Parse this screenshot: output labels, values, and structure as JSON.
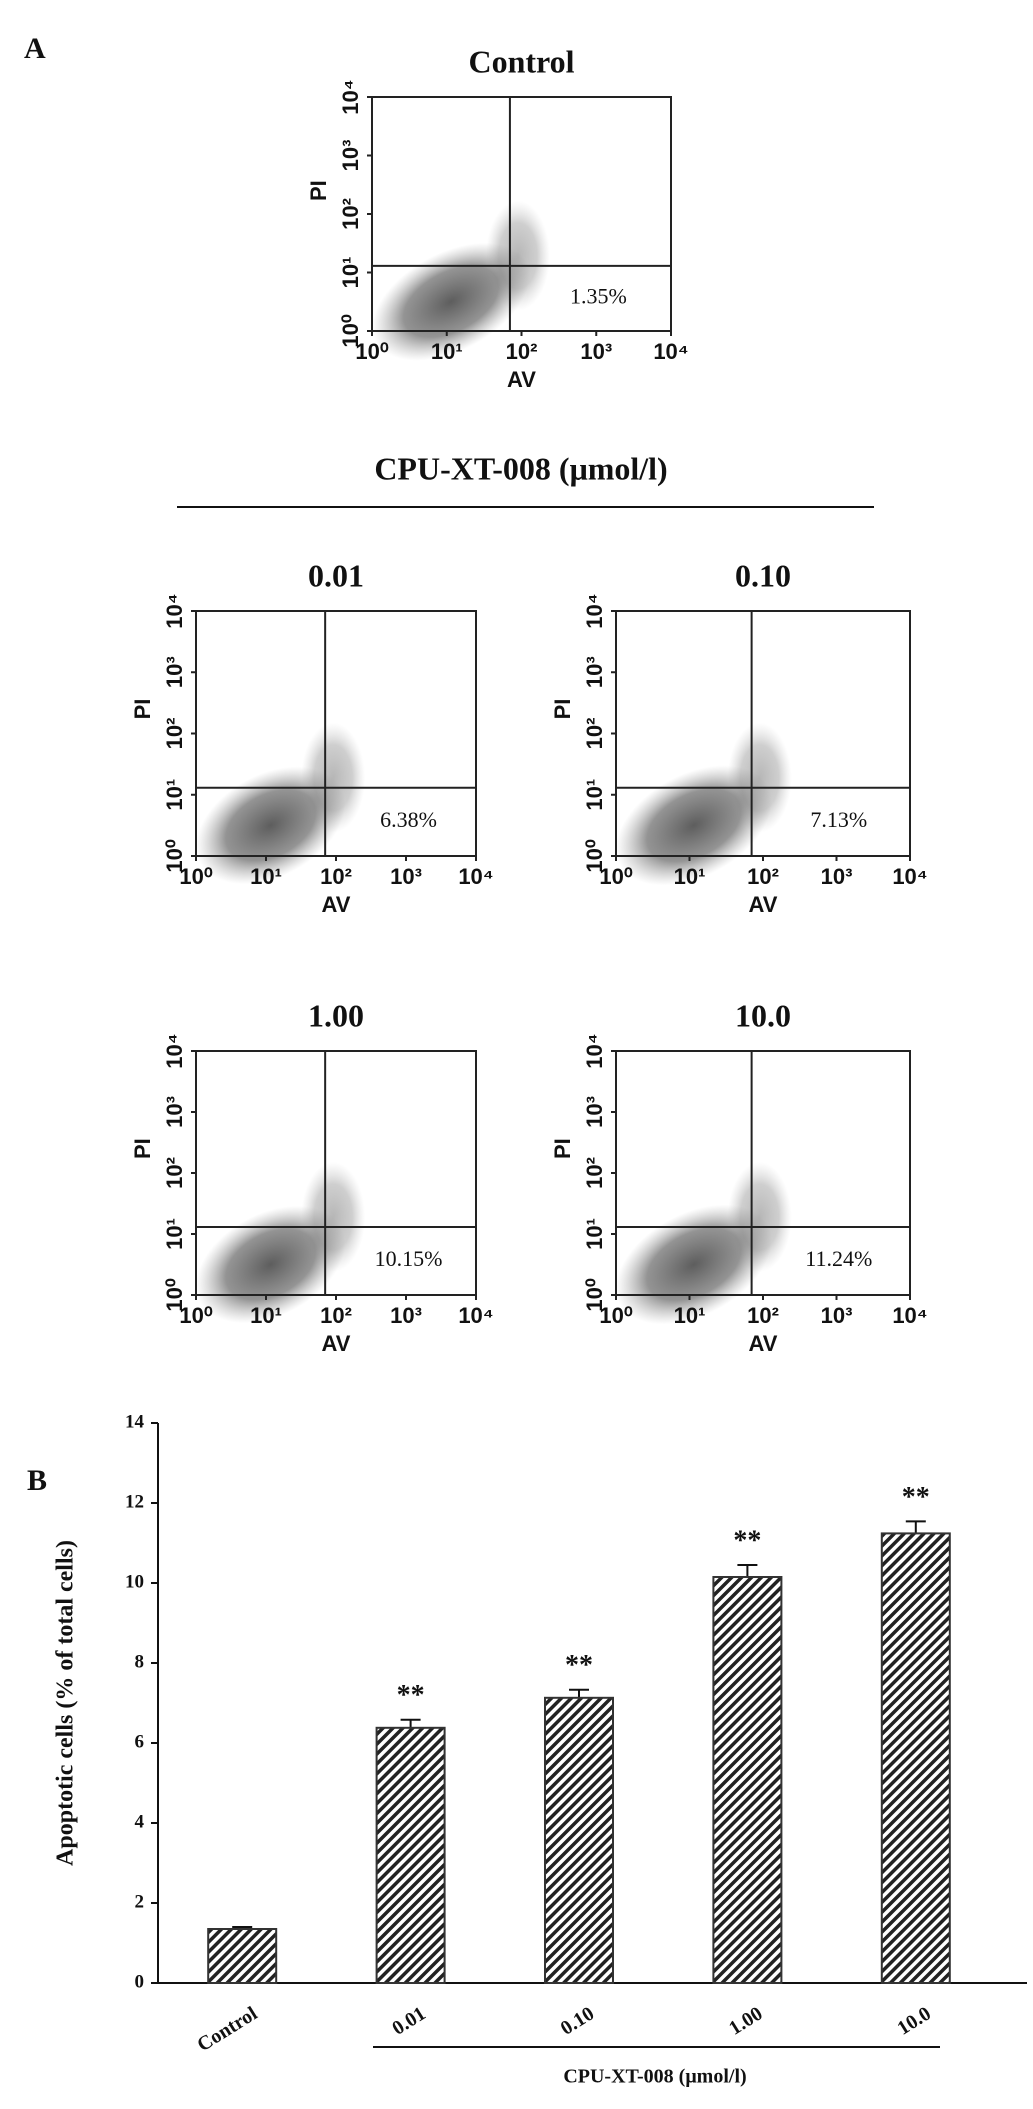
{
  "figure": {
    "panel_a": "A",
    "panel_b": "B",
    "group_label": "CPU-XT-008 (μmol/l)"
  },
  "chart_data": [
    {
      "type": "flow",
      "title": "Control",
      "x_label": "AV",
      "y_label": "PI",
      "log_scale": true,
      "xlim": [
        1,
        10000
      ],
      "ylim": [
        1,
        10000
      ],
      "xticks": [
        {
          "value": 1,
          "label": "10⁰"
        },
        {
          "value": 10,
          "label": "10¹"
        },
        {
          "value": 100,
          "label": "10²"
        },
        {
          "value": 1000,
          "label": "10³"
        },
        {
          "value": 10000,
          "label": "10⁴"
        }
      ],
      "yticks": [
        {
          "value": 1,
          "label": "10⁰"
        },
        {
          "value": 10,
          "label": "10¹"
        },
        {
          "value": 100,
          "label": "10²"
        },
        {
          "value": 1000,
          "label": "10³"
        },
        {
          "value": 10000,
          "label": "10⁴"
        }
      ],
      "gate_x": 70,
      "gate_y": 13,
      "annotation": "1.35%"
    },
    {
      "type": "flow",
      "title": "0.01",
      "x_label": "AV",
      "y_label": "PI",
      "log_scale": true,
      "xlim": [
        1,
        10000
      ],
      "ylim": [
        1,
        10000
      ],
      "xticks": [
        {
          "value": 1,
          "label": "10⁰"
        },
        {
          "value": 10,
          "label": "10¹"
        },
        {
          "value": 100,
          "label": "10²"
        },
        {
          "value": 1000,
          "label": "10³"
        },
        {
          "value": 10000,
          "label": "10⁴"
        }
      ],
      "yticks": [
        {
          "value": 1,
          "label": "10⁰"
        },
        {
          "value": 10,
          "label": "10¹"
        },
        {
          "value": 100,
          "label": "10²"
        },
        {
          "value": 1000,
          "label": "10³"
        },
        {
          "value": 10000,
          "label": "10⁴"
        }
      ],
      "gate_x": 70,
      "gate_y": 13,
      "annotation": "6.38%"
    },
    {
      "type": "flow",
      "title": "0.10",
      "x_label": "AV",
      "y_label": "PI",
      "log_scale": true,
      "xlim": [
        1,
        10000
      ],
      "ylim": [
        1,
        10000
      ],
      "xticks": [
        {
          "value": 1,
          "label": "10⁰"
        },
        {
          "value": 10,
          "label": "10¹"
        },
        {
          "value": 100,
          "label": "10²"
        },
        {
          "value": 1000,
          "label": "10³"
        },
        {
          "value": 10000,
          "label": "10⁴"
        }
      ],
      "yticks": [
        {
          "value": 1,
          "label": "10⁰"
        },
        {
          "value": 10,
          "label": "10¹"
        },
        {
          "value": 100,
          "label": "10²"
        },
        {
          "value": 1000,
          "label": "10³"
        },
        {
          "value": 10000,
          "label": "10⁴"
        }
      ],
      "gate_x": 70,
      "gate_y": 13,
      "annotation": "7.13%"
    },
    {
      "type": "flow",
      "title": "1.00",
      "x_label": "AV",
      "y_label": "PI",
      "log_scale": true,
      "xlim": [
        1,
        10000
      ],
      "ylim": [
        1,
        10000
      ],
      "xticks": [
        {
          "value": 1,
          "label": "10⁰"
        },
        {
          "value": 10,
          "label": "10¹"
        },
        {
          "value": 100,
          "label": "10²"
        },
        {
          "value": 1000,
          "label": "10³"
        },
        {
          "value": 10000,
          "label": "10⁴"
        }
      ],
      "yticks": [
        {
          "value": 1,
          "label": "10⁰"
        },
        {
          "value": 10,
          "label": "10¹"
        },
        {
          "value": 100,
          "label": "10²"
        },
        {
          "value": 1000,
          "label": "10³"
        },
        {
          "value": 10000,
          "label": "10⁴"
        }
      ],
      "gate_x": 70,
      "gate_y": 13,
      "annotation": "10.15%"
    },
    {
      "type": "flow",
      "title": "10.0",
      "x_label": "AV",
      "y_label": "PI",
      "log_scale": true,
      "xlim": [
        1,
        10000
      ],
      "ylim": [
        1,
        10000
      ],
      "xticks": [
        {
          "value": 1,
          "label": "10⁰"
        },
        {
          "value": 10,
          "label": "10¹"
        },
        {
          "value": 100,
          "label": "10²"
        },
        {
          "value": 1000,
          "label": "10³"
        },
        {
          "value": 10000,
          "label": "10⁴"
        }
      ],
      "yticks": [
        {
          "value": 1,
          "label": "10⁰"
        },
        {
          "value": 10,
          "label": "10¹"
        },
        {
          "value": 100,
          "label": "10²"
        },
        {
          "value": 1000,
          "label": "10³"
        },
        {
          "value": 10000,
          "label": "10⁴"
        }
      ],
      "gate_x": 70,
      "gate_y": 13,
      "annotation": "11.24%"
    },
    {
      "type": "bar",
      "y_label": "Apoptotic cells  (% of total cells)",
      "x_group_label": "CPU-XT-008 (μmol/l)",
      "categories": [
        "Control",
        "0.01",
        "0.10",
        "1.00",
        "10.0"
      ],
      "values": [
        1.35,
        6.38,
        7.13,
        10.15,
        11.24
      ],
      "errors": [
        0.05,
        0.2,
        0.2,
        0.3,
        0.3
      ],
      "significance": [
        null,
        "**",
        "**",
        "**",
        "**"
      ],
      "color": "#333333",
      "ylim": [
        0,
        14
      ],
      "yticks": [
        0,
        2,
        4,
        6,
        8,
        10,
        12,
        14
      ]
    }
  ]
}
